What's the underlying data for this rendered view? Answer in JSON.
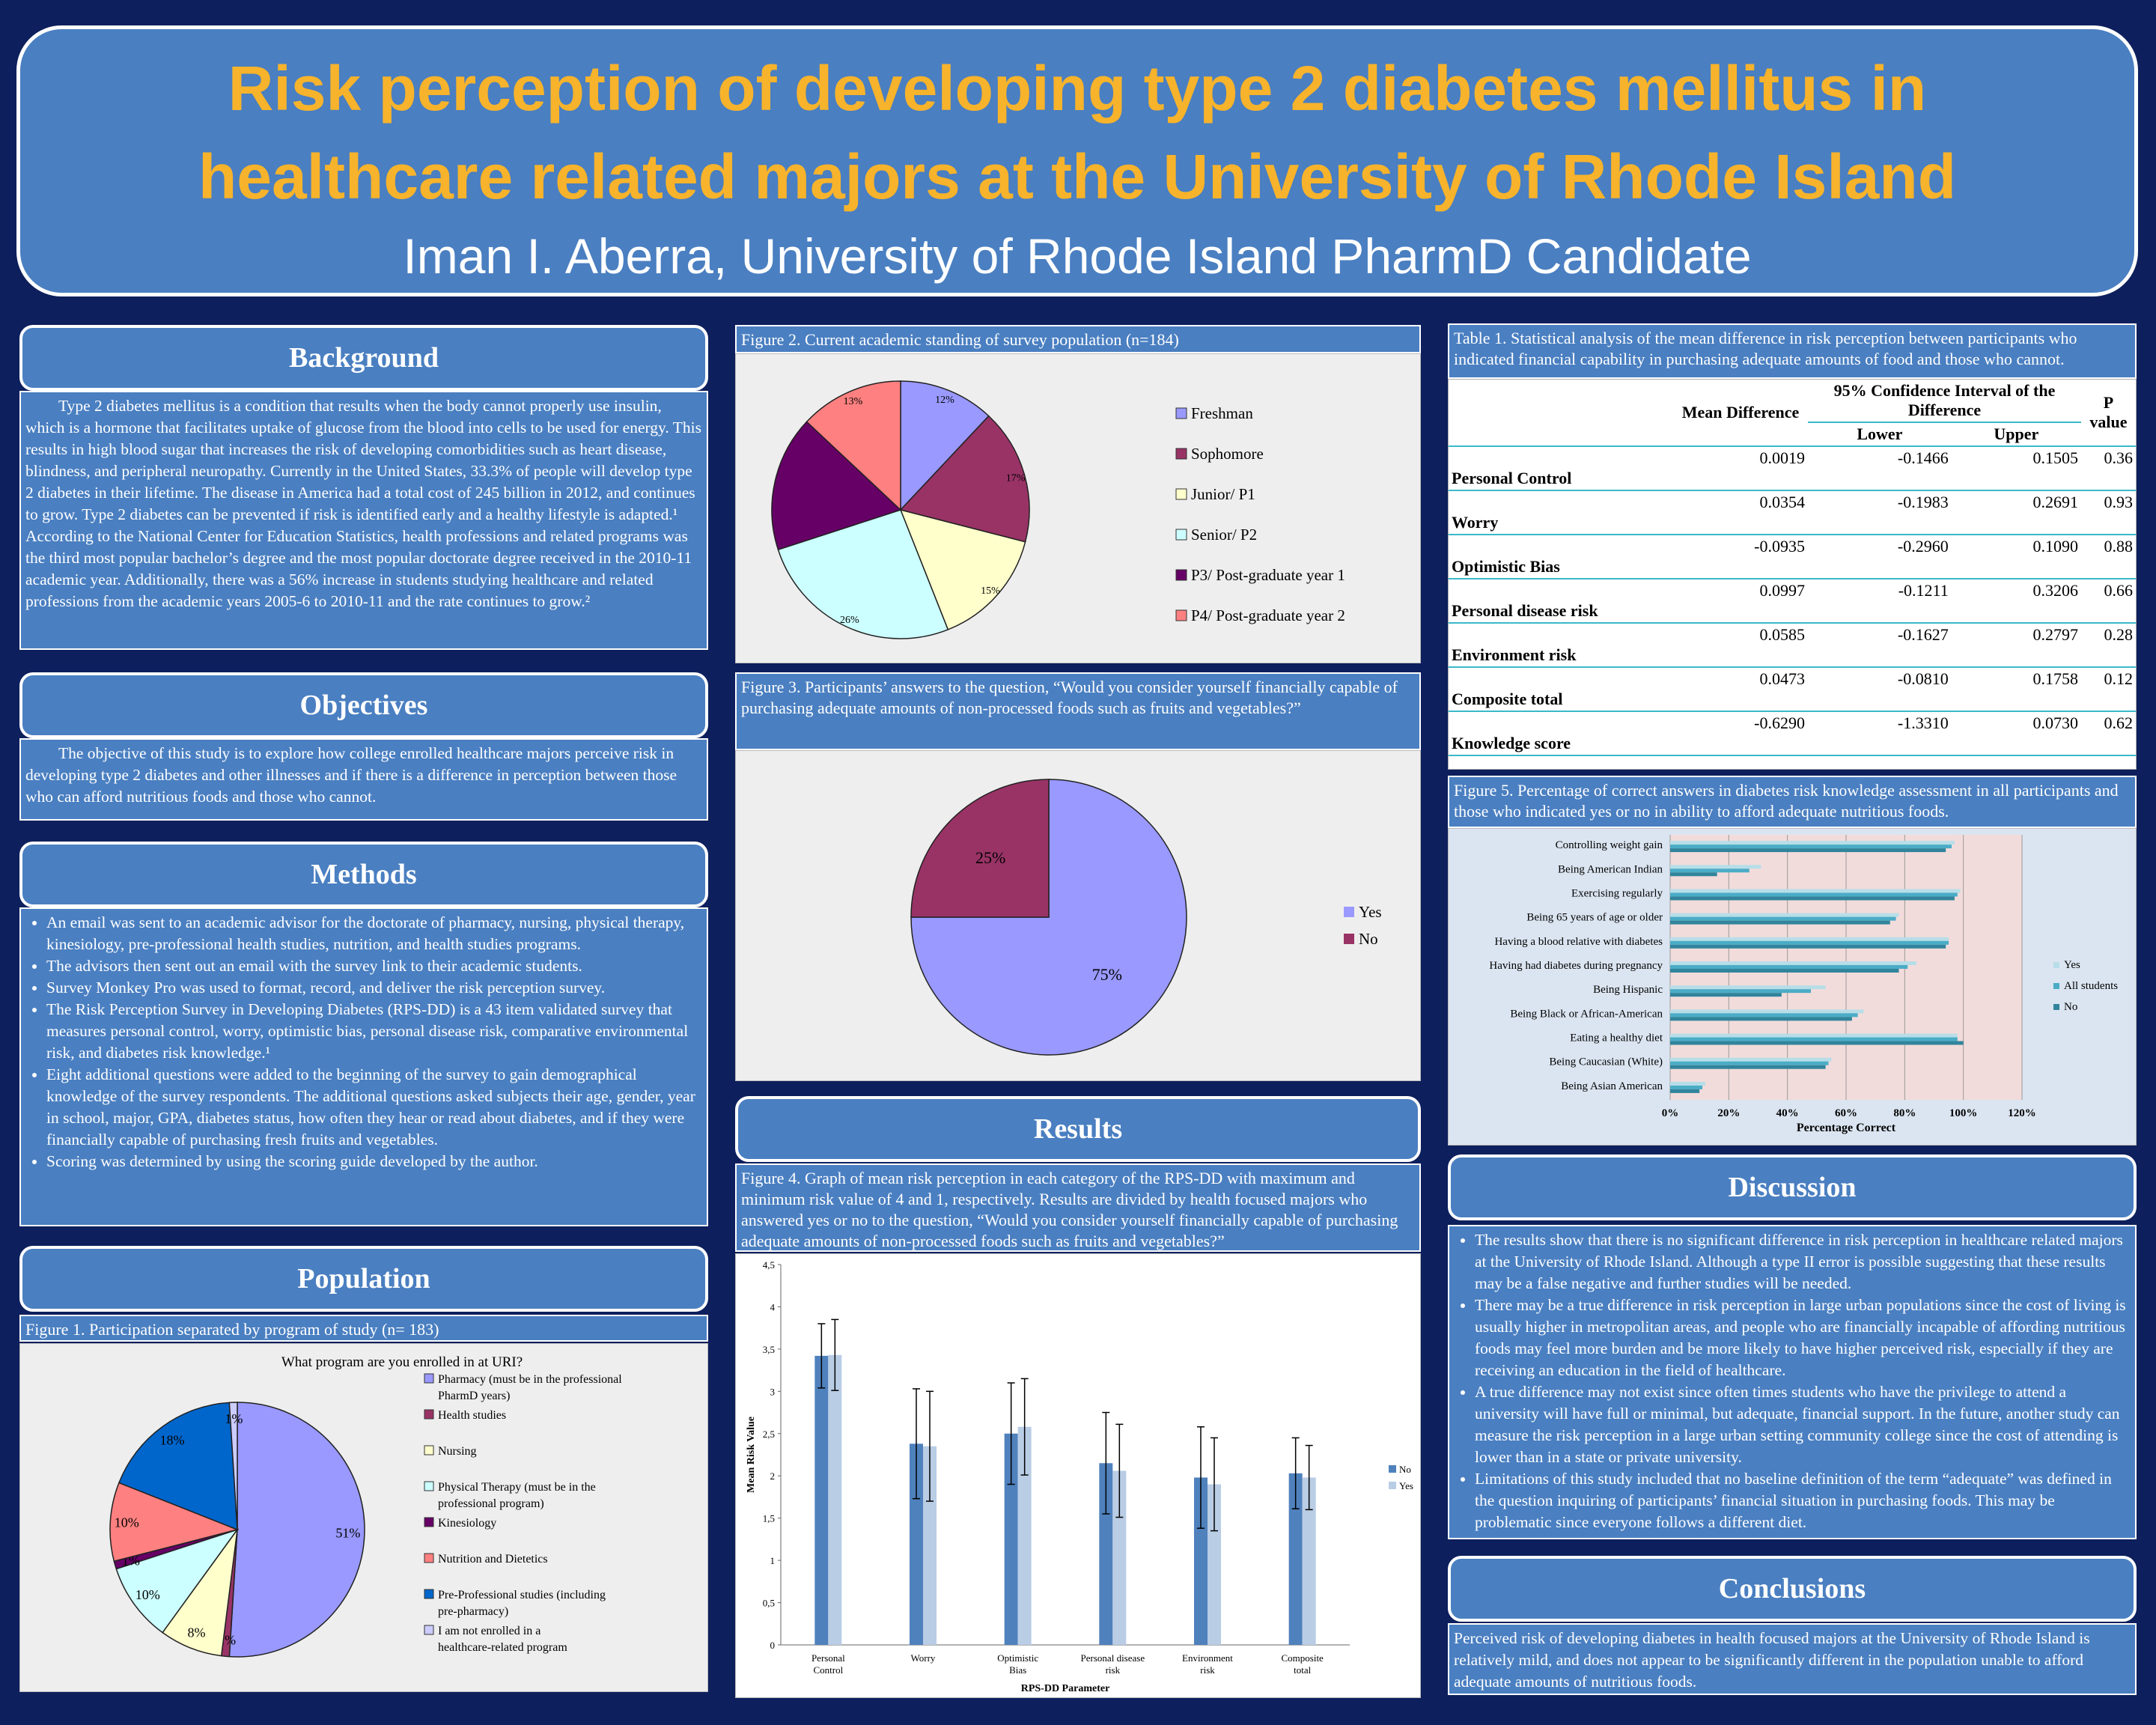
{
  "title_line1": "Risk perception of developing type 2 diabetes mellitus in",
  "title_line2": "healthcare related majors at the University of Rhode Island",
  "author": "Iman I. Aberra, University of Rhode Island PharmD Candidate",
  "background": {
    "heading": "Background",
    "text": "Type 2 diabetes mellitus is a condition that results when the body cannot properly use insulin, which is a hormone that facilitates uptake of glucose from the blood into cells to be used for energy. This results in high blood sugar that increases the risk of developing comorbidities such as heart disease, blindness, and peripheral neuropathy. Currently in the United States, 33.3% of people will develop type 2 diabetes in their lifetime. The disease in America had a total cost of 245 billion in 2012, and continues to grow. Type 2 diabetes can be prevented if risk is identified early and a healthy lifestyle is adapted.¹ According to the National Center for Education Statistics, health professions and related programs was the third most popular bachelor’s degree and the most popular doctorate degree received in the 2010-11 academic year. Additionally, there was a 56% increase in students studying healthcare and related professions from the academic years 2005-6 to 2010-11 and the rate continues to grow.²"
  },
  "objectives": {
    "heading": "Objectives",
    "text": "The objective of this study is to explore how college enrolled healthcare majors perceive risk in developing type 2 diabetes and other illnesses and if there is a difference in perception between those who can afford nutritious foods and those who cannot."
  },
  "methods": {
    "heading": "Methods",
    "items": [
      "An email was sent to an academic advisor for the doctorate of pharmacy, nursing, physical therapy, kinesiology, pre-professional health studies, nutrition, and health studies programs.",
      "The advisors then sent out an email with the survey link to their academic students.",
      "Survey Monkey Pro was used to format, record, and deliver the risk perception survey.",
      "The Risk Perception Survey in Developing Diabetes (RPS-DD) is a 43 item validated survey that measures personal control, worry, optimistic bias, personal disease risk, comparative environmental risk, and diabetes risk knowledge.¹",
      "Eight additional questions were added to the beginning of the survey to gain demographical knowledge of the survey respondents. The additional questions asked subjects their age, gender, year in school, major, GPA, diabetes status, how often they hear or read about diabetes, and if they were financially capable of purchasing fresh fruits and vegetables.",
      "Scoring was determined by using the scoring guide developed by the author."
    ]
  },
  "population": {
    "heading": "Population",
    "caption": "Figure 1. Participation separated by program of study  (n= 183)"
  },
  "fig1": {
    "type": "pie",
    "title": "What program are you enrolled in at URI?",
    "categories": [
      "Pharmacy (must be in the professional PharmD years)",
      "Health studies",
      "Nursing",
      "Physical Therapy (must be in the professional program)",
      "Kinesiology",
      "Nutrition and Dietetics",
      "Pre-Professional studies (including pre-pharmacy)",
      "I am not enrolled in a healthcare-related program"
    ],
    "values": [
      51,
      1,
      8,
      10,
      1,
      10,
      18,
      1
    ],
    "labels": [
      "51%",
      "1%",
      "8%",
      "10%",
      "1%",
      "10%",
      "18%",
      "1%"
    ],
    "colors": [
      "#9999ff",
      "#993366",
      "#ffffcc",
      "#ccffff",
      "#660066",
      "#ff8080",
      "#0066cc",
      "#ccccff"
    ]
  },
  "fig2": {
    "caption": "Figure 2. Current academic standing of survey population  (n=184)",
    "type": "pie",
    "categories": [
      "Freshman",
      "Sophomore",
      "Junior/ P1",
      "Senior/ P2",
      "P3/ Post-graduate year 1",
      "P4/ Post-graduate year 2"
    ],
    "values": [
      12,
      17,
      15,
      26,
      17,
      13
    ],
    "labels": [
      "12%",
      "17%",
      "15%",
      "26%",
      "",
      "13%"
    ],
    "colors": [
      "#9999ff",
      "#993366",
      "#ffffcc",
      "#ccffff",
      "#660066",
      "#ff8080"
    ]
  },
  "fig3": {
    "caption": "Figure 3. Participants’ answers to the question, “Would you consider yourself financially capable of purchasing adequate amounts of non-processed foods such as fruits and vegetables?”",
    "type": "pie",
    "categories": [
      "Yes",
      "No"
    ],
    "values": [
      75,
      25
    ],
    "labels": [
      "75%",
      "25%"
    ],
    "colors": [
      "#9999ff",
      "#993366"
    ]
  },
  "results": {
    "heading": "Results",
    "caption": "Figure 4. Graph of mean risk perception in each category of the RPS-DD with  maximum and minimum risk value of 4 and 1, respectively. Results are divided by health focused majors who answered yes or no to the question, “Would you consider yourself financially capable of purchasing adequate amounts of non-processed foods such as fruits and vegetables?”"
  },
  "fig4": {
    "type": "bar",
    "categories": [
      "Personal Control",
      "Worry",
      "Optimistic Bias",
      "Personal disease risk",
      "Environment risk",
      "Composite total"
    ],
    "series": [
      {
        "name": "No",
        "values": [
          3.42,
          2.38,
          2.5,
          2.15,
          1.98,
          2.03
        ],
        "err": [
          0.38,
          0.65,
          0.6,
          0.6,
          0.6,
          0.42
        ],
        "color": "#4f81bd"
      },
      {
        "name": "Yes",
        "values": [
          3.43,
          2.35,
          2.58,
          2.06,
          1.9,
          1.98
        ],
        "err": [
          0.42,
          0.65,
          0.57,
          0.55,
          0.55,
          0.38
        ],
        "color": "#b9cde5"
      }
    ],
    "ylabel": "Mean Risk Value",
    "xlabel": "RPS-DD Parameter",
    "ylim": [
      0,
      4.5
    ],
    "yticks": [
      "0",
      "0,5",
      "1",
      "1,5",
      "2",
      "2,5",
      "3",
      "3,5",
      "4",
      "4,5"
    ]
  },
  "table1": {
    "caption": "Table 1. Statistical analysis of the mean difference in risk perception between participants who indicated financial capability in purchasing adequate amounts of food and those who cannot.",
    "col_mean": "Mean Difference",
    "col_ci": "95% Confidence Interval of the Difference",
    "col_lower": "Lower",
    "col_upper": "Upper",
    "col_p": "P value",
    "rows": [
      {
        "name": "Personal Control",
        "mean": "0.0019",
        "lower": "-0.1466",
        "upper": "0.1505",
        "p": "0.36"
      },
      {
        "name": "Worry",
        "mean": "0.0354",
        "lower": "-0.1983",
        "upper": "0.2691",
        "p": "0.93"
      },
      {
        "name": "Optimistic Bias",
        "mean": "-0.0935",
        "lower": "-0.2960",
        "upper": "0.1090",
        "p": "0.88"
      },
      {
        "name": "Personal disease risk",
        "mean": "0.0997",
        "lower": "-0.1211",
        "upper": "0.3206",
        "p": "0.66"
      },
      {
        "name": "Environment risk",
        "mean": "0.0585",
        "lower": "-0.1627",
        "upper": "0.2797",
        "p": "0.28"
      },
      {
        "name": "Composite total",
        "mean": "0.0473",
        "lower": "-0.0810",
        "upper": "0.1758",
        "p": "0.12"
      },
      {
        "name": "Knowledge score",
        "mean": "-0.6290",
        "lower": "-1.3310",
        "upper": "0.0730",
        "p": "0.62"
      }
    ]
  },
  "fig5": {
    "caption": "Figure 5. Percentage of correct answers in diabetes risk knowledge assessment in all participants and those who indicated yes or no in ability to afford adequate nutritious foods.",
    "type": "bar",
    "categories": [
      "Controlling weight gain",
      "Being American Indian",
      "Exercising regularly",
      "Being 65 years of age or older",
      "Having a blood relative with diabetes",
      "Having had diabetes during pregnancy",
      "Being Hispanic",
      "Being Black or African-American",
      "Eating a healthy diet",
      "Being Caucasian (White)",
      "Being Asian American"
    ],
    "series": [
      {
        "name": "Yes",
        "values": [
          97,
          31,
          99,
          78,
          95,
          84,
          53,
          66,
          98,
          55,
          12
        ],
        "color": "#b7dee8"
      },
      {
        "name": "All students",
        "values": [
          96,
          27,
          98,
          77,
          95,
          81,
          48,
          64,
          98,
          54,
          11
        ],
        "color": "#4bacc6"
      },
      {
        "name": "No",
        "values": [
          94,
          16,
          97,
          75,
          94,
          78,
          38,
          62,
          100,
          53,
          10
        ],
        "color": "#31849b"
      }
    ],
    "xlabel": "Percentage Correct",
    "xlim": [
      0,
      120
    ],
    "xticks": [
      "0%",
      "20%",
      "40%",
      "60%",
      "80%",
      "100%",
      "120%"
    ]
  },
  "discussion": {
    "heading": "Discussion",
    "items": [
      "The results show that there is no significant difference in risk perception in healthcare related majors at the University of Rhode Island. Although a type II error is possible suggesting that these results may be a false negative and further studies will be needed.",
      "There may be a true difference in risk  perception in large urban populations since the cost of living is usually higher in metropolitan areas, and people who are financially incapable of affording nutritious foods may feel more burden and be more likely to have higher perceived risk, especially if they are receiving an education in the field of healthcare.",
      "A true difference may not exist since often times students who have the privilege to attend a university will have full or minimal, but adequate, financial support. In the future, another study can measure the risk perception in a large urban setting community college since the cost of attending is lower than in a state or private university.",
      "Limitations of this study included that no baseline definition of the term “adequate” was defined in the question inquiring of participants’ financial situation in purchasing foods. This may be problematic since everyone follows a different diet."
    ]
  },
  "conclusions": {
    "heading": "Conclusions",
    "text": "Perceived risk of developing diabetes in health focused majors at the University of Rhode Island is relatively mild, and does not appear to be significantly different in the population unable to afford adequate amounts of nutritious foods."
  }
}
